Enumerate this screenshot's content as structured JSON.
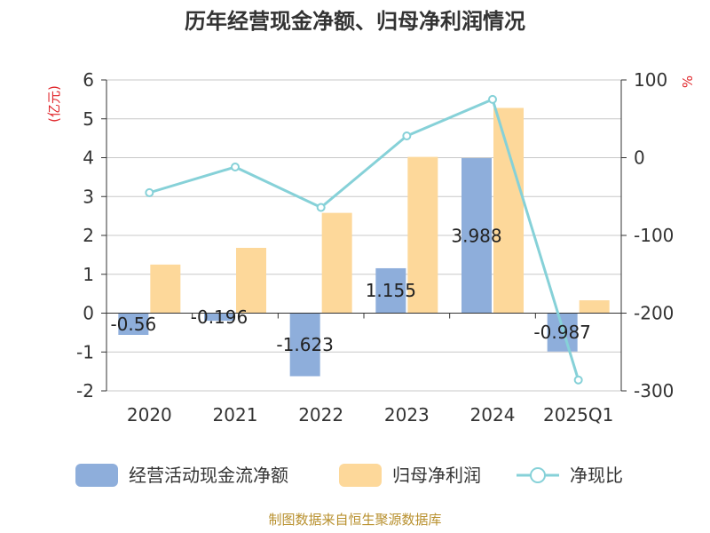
{
  "chart_data": {
    "type": "bar",
    "title": "历年经营现金净额、归母净利润情况",
    "categories": [
      "2020",
      "2021",
      "2022",
      "2023",
      "2024",
      "2025Q1"
    ],
    "y_left": {
      "unit": "(亿元)",
      "min": -2,
      "max": 6,
      "ticks": [
        6,
        5,
        4,
        3,
        2,
        1,
        0,
        -1,
        -2
      ]
    },
    "y_right": {
      "unit": "%",
      "min": -300,
      "max": 100,
      "ticks": [
        100,
        0,
        -100,
        -200,
        -300
      ]
    },
    "series": [
      {
        "name": "经营活动现金流净额",
        "type": "bar",
        "axis": "left",
        "color": "#8eaedb",
        "values": [
          -0.56,
          -0.196,
          -1.623,
          1.155,
          3.988,
          -0.987
        ],
        "labels": [
          "-0.56",
          "-0.196",
          "-1.623",
          "1.155",
          "3.988",
          "-0.987"
        ]
      },
      {
        "name": "归母净利润",
        "type": "bar",
        "axis": "left",
        "color": "#fdd89a",
        "values": [
          1.25,
          1.68,
          2.58,
          4.02,
          5.28,
          0.33
        ]
      },
      {
        "name": "净现比",
        "type": "line",
        "axis": "right",
        "color": "#86d1d8",
        "values": [
          -45,
          -12,
          -64,
          28,
          75,
          -286
        ]
      }
    ],
    "legend_position": "bottom",
    "grid": true
  },
  "source": "制图数据来自恒生聚源数据库"
}
